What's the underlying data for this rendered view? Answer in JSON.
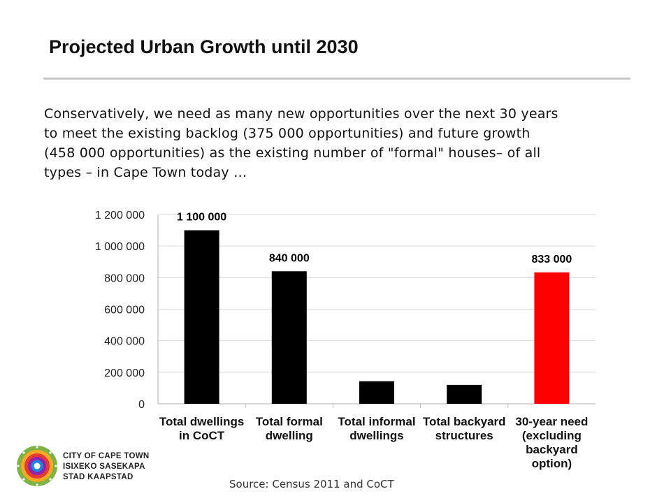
{
  "header": {
    "title": "Projected Urban Growth until 2030"
  },
  "body": {
    "lines": [
      "Conservatively, we need as many new opportunities over the next 30 years",
      "to meet  the existing backlog (375 000 opportunities) and future growth",
      "(458 000 opportunities) as the existing number of  \"formal\" houses– of all",
      "types – in Cape Town today …"
    ]
  },
  "chart_data": {
    "type": "bar",
    "categories": [
      [
        "Total dwellings",
        "in CoCT"
      ],
      [
        "Total formal",
        "dwelling"
      ],
      [
        "Total informal",
        "dwellings"
      ],
      [
        "Total backyard",
        "structures"
      ],
      [
        "30-year need",
        "(excluding",
        "backyard",
        "option)"
      ]
    ],
    "values": [
      1100000,
      840000,
      143000,
      120000,
      833000
    ],
    "data_labels": [
      "1 100 000",
      "840 000",
      "",
      "",
      "833 000"
    ],
    "bar_colors": [
      "#000000",
      "#000000",
      "#000000",
      "#000000",
      "#ff0000"
    ],
    "ylim": [
      0,
      1200000
    ],
    "yticks": [
      0,
      200000,
      400000,
      600000,
      800000,
      1000000,
      1200000
    ],
    "ytick_labels": [
      "0",
      "200 000",
      "400 000",
      "600 000",
      "800 000",
      "1 000 000",
      "1 200 000"
    ],
    "grid": true,
    "title": "",
    "xlabel": "",
    "ylabel": ""
  },
  "footer": {
    "logo_lines": [
      "CITY OF CAPE TOWN",
      "ISIXEKO SASEKAPA",
      "STAD KAAPSTAD"
    ],
    "source": "Source: Census 2011 and CoCT"
  },
  "colors": {
    "bar_default": "#000000",
    "bar_highlight": "#ff0000",
    "grid": "#d9d9d9",
    "rule": "#c8c8c8"
  }
}
